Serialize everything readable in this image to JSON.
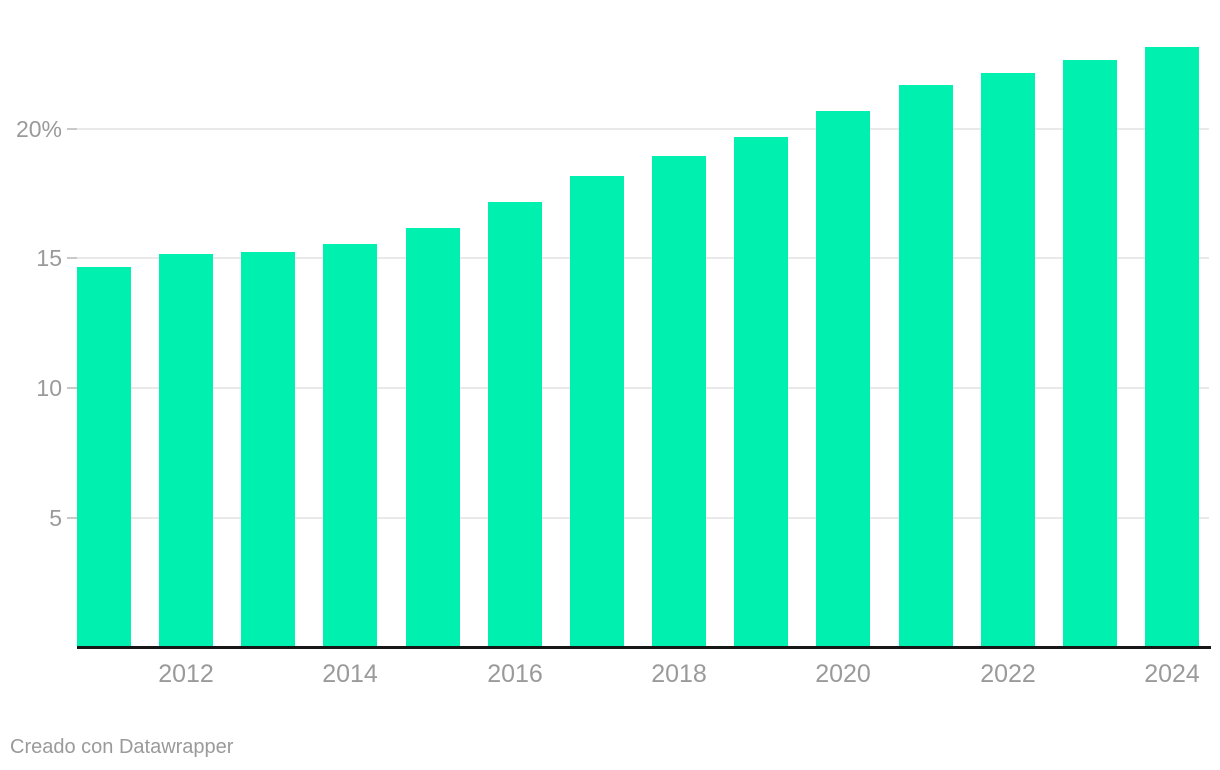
{
  "chart_data": {
    "type": "bar",
    "title": "",
    "categories": [
      2011,
      2012,
      2013,
      2014,
      2015,
      2016,
      2017,
      2018,
      2019,
      2020,
      2021,
      2022,
      2023,
      2024
    ],
    "values": [
      14.6,
      15.1,
      15.2,
      15.5,
      16.1,
      17.1,
      18.1,
      18.9,
      19.6,
      20.6,
      21.6,
      22.1,
      22.6,
      23.1
    ],
    "unit": "%",
    "xlabel": "",
    "ylabel": "",
    "ylim": [
      0,
      23.5
    ],
    "grid": true,
    "legend_position": "none",
    "y_ticks": [
      {
        "value": 5,
        "label": "5"
      },
      {
        "value": 10,
        "label": "10"
      },
      {
        "value": 15,
        "label": "15"
      },
      {
        "value": 20,
        "label": "20%"
      }
    ],
    "x_tick_labels": [
      "2012",
      "2014",
      "2016",
      "2018",
      "2020",
      "2022",
      "2024"
    ],
    "bar_color": "#00f0b0"
  },
  "colors": {
    "bar": "#00f0b0",
    "gridline": "#e9e9e9",
    "tick": "#c9c9c9",
    "axis_line": "#161616",
    "label_text": "#9a9a9a"
  },
  "footer": {
    "text": "Creado con Datawrapper"
  }
}
